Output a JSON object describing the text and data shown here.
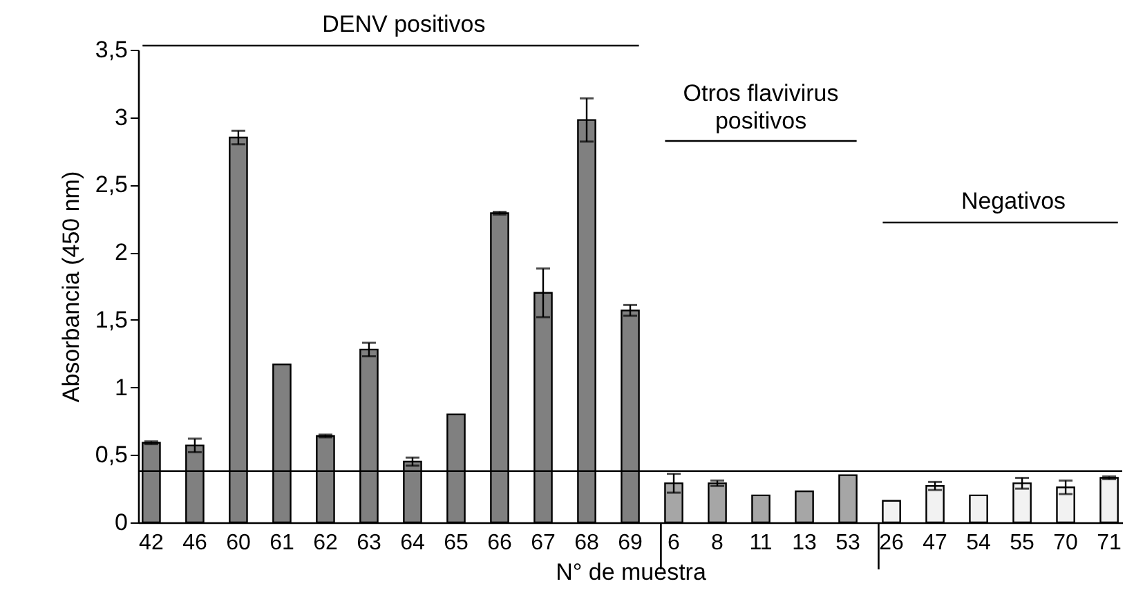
{
  "chart_data": {
    "type": "bar",
    "xlabel": "N° de muestra",
    "ylabel": "Absorbancia (450 nm)",
    "categories": [
      "42",
      "46",
      "60",
      "61",
      "62",
      "63",
      "64",
      "65",
      "66",
      "67",
      "68",
      "69",
      "6",
      "8",
      "11",
      "13",
      "53",
      "26",
      "47",
      "54",
      "55",
      "70",
      "71"
    ],
    "values": [
      0.59,
      0.57,
      2.85,
      1.17,
      0.64,
      1.28,
      0.45,
      0.8,
      2.29,
      1.7,
      2.98,
      1.57,
      0.29,
      0.29,
      0.2,
      0.23,
      0.35,
      0.16,
      0.27,
      0.2,
      0.29,
      0.26,
      0.33
    ],
    "errors": [
      0.01,
      0.05,
      0.05,
      null,
      0.01,
      0.05,
      0.03,
      null,
      0.01,
      0.18,
      0.16,
      0.04,
      0.07,
      0.02,
      null,
      null,
      null,
      null,
      0.03,
      null,
      0.04,
      0.05,
      0.01
    ],
    "colors": [
      "#808080",
      "#808080",
      "#808080",
      "#808080",
      "#808080",
      "#808080",
      "#808080",
      "#808080",
      "#808080",
      "#808080",
      "#808080",
      "#808080",
      "#a6a6a6",
      "#a6a6a6",
      "#a6a6a6",
      "#a6a6a6",
      "#a6a6a6",
      "#f2f2f2",
      "#f2f2f2",
      "#f2f2f2",
      "#f2f2f2",
      "#f2f2f2",
      "#f2f2f2"
    ],
    "ylim": [
      0,
      3.5
    ],
    "yticks": [
      0,
      {
        "value": 0.5,
        "label": "0,5"
      },
      1,
      {
        "value": 1.5,
        "label": "1,5"
      },
      2,
      {
        "value": 2.5,
        "label": "2,5"
      },
      3,
      {
        "value": 3.5,
        "label": "3,5"
      }
    ],
    "ref_lines": [
      {
        "axis": "y",
        "value": 0.38,
        "label": null,
        "color": "#000000"
      }
    ],
    "annotations": [
      "DENV positivos",
      "Otros flavivirus\npositivos",
      "Negativos"
    ],
    "grid": false
  }
}
